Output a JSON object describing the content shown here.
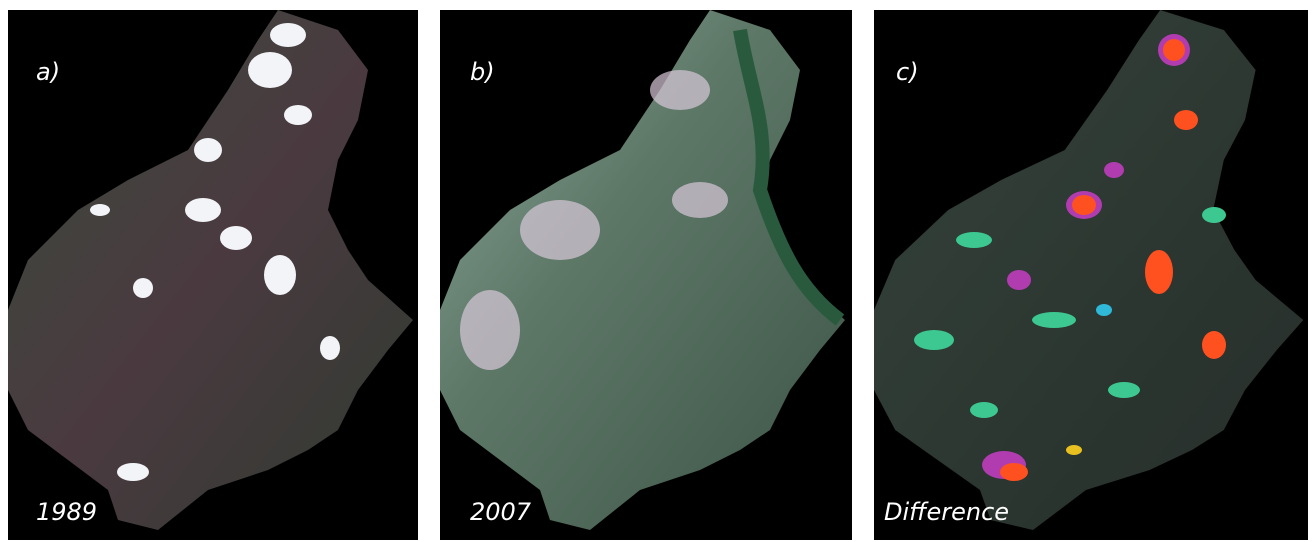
{
  "panels": [
    {
      "label": "a)",
      "caption": "1989"
    },
    {
      "label": "b)",
      "caption": "2007"
    },
    {
      "label": "c)",
      "caption": "Difference"
    }
  ]
}
